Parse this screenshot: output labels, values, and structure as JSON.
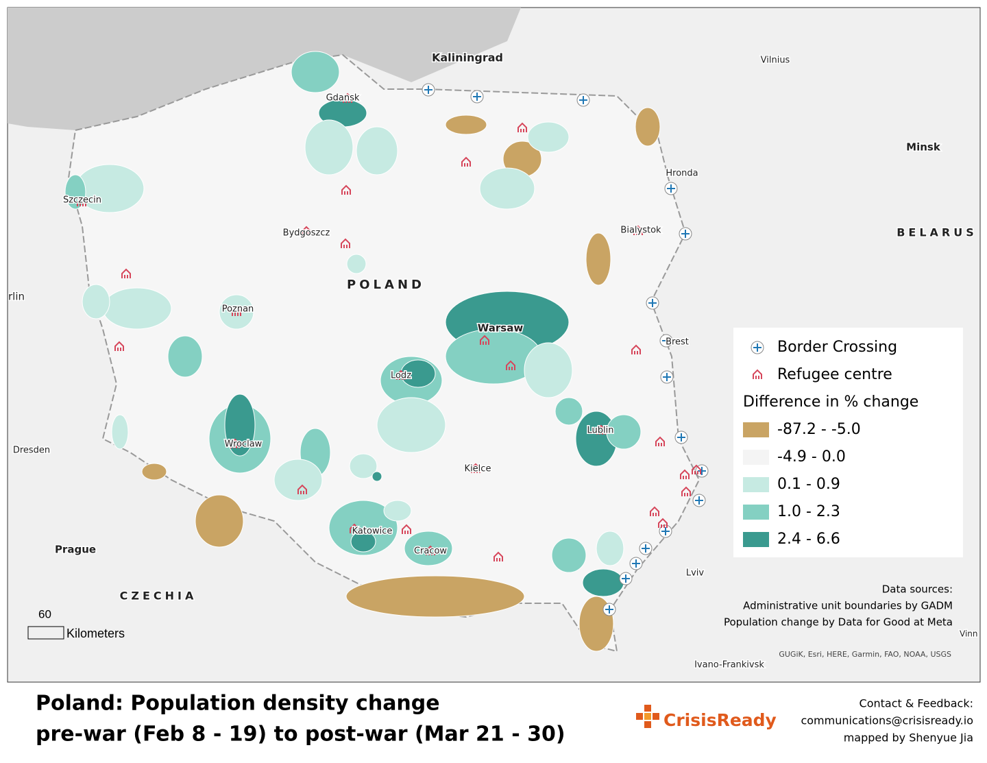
{
  "map": {
    "labels": [
      "Kaliningrad",
      "Vilnius",
      "Minsk",
      "Hronda",
      "Bialystok",
      "BELARUS",
      "Gdansk",
      "Szczecin",
      "Bydgoszcz",
      "POLAND",
      "rlin",
      "Poznan",
      "Warsaw",
      "Brest",
      "Lodz",
      "Lublin",
      "Dresden",
      "Wroclaw",
      "Kielce",
      "Katowice",
      "Cracow",
      "Prague",
      "Lviv",
      "CZECHIA",
      "Ivano-Frankivsk",
      "Vinn"
    ]
  },
  "legend": {
    "border_crossing": "Border Crossing",
    "refugee_centre": "Refugee centre",
    "title": "Difference in % change",
    "classes": [
      {
        "label": "-87.2 - -5.0",
        "color": "#c9a464"
      },
      {
        "label": "-4.9 - 0.0",
        "color": "#f4f4f4"
      },
      {
        "label": "0.1 - 0.9",
        "color": "#c6eae2"
      },
      {
        "label": "1.0 - 2.3",
        "color": "#84d0c2"
      },
      {
        "label": "2.4 - 6.6",
        "color": "#3a9a8f"
      }
    ]
  },
  "scale": {
    "value": "60",
    "unit": "Kilometers"
  },
  "sources": [
    "Data sources:",
    "Administrative unit boundaries by GADM",
    "Population change by Data for Good at Meta"
  ],
  "attribution": "GUGiK, Esri, HERE, Garmin, FAO, NOAA, USGS",
  "title": [
    "Poland: Population density change",
    "pre-war (Feb 8 - 19) to post-war (Mar 21 - 30)"
  ],
  "logo": "CrisisReady",
  "contact": [
    "Contact & Feedback:",
    "communications@crisisready.io",
    "mapped by Shenyue Jia"
  ]
}
